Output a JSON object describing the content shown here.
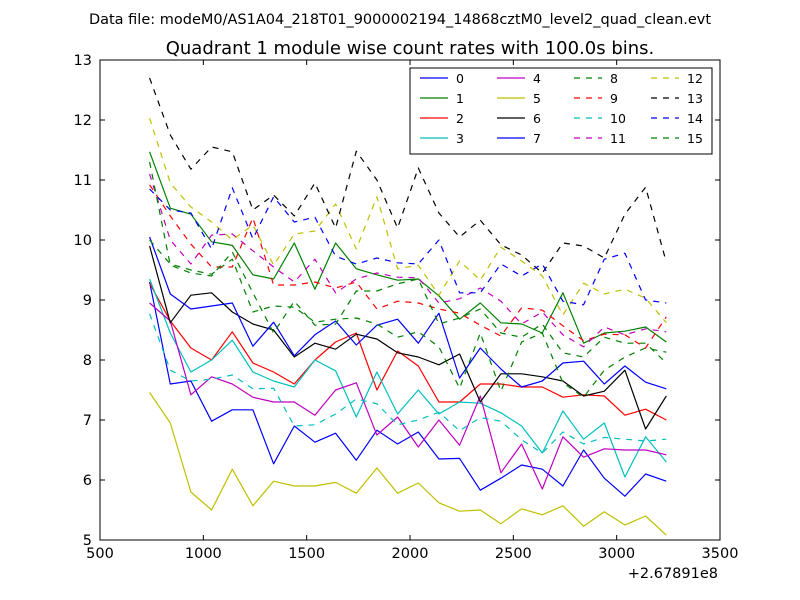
{
  "figure": {
    "suptitle": "Data file: modeM0/AS1A04_218T01_9000002194_14868cztM0_level2_quad_clean.evt"
  },
  "chart_data": {
    "type": "line",
    "title": "Quadrant 1 module wise count rates with 100.0s bins.",
    "xlabel": "",
    "ylabel": "",
    "x_offset_label": "+2.67891e8",
    "xlim": [
      500,
      3500
    ],
    "ylim": [
      5,
      13
    ],
    "xticks": [
      500,
      1000,
      1500,
      2000,
      2500,
      3000,
      3500
    ],
    "yticks": [
      5,
      6,
      7,
      8,
      9,
      10,
      11,
      12,
      13
    ],
    "grid": false,
    "legend_position": "top-right",
    "legend_columns": 4,
    "x": [
      740,
      840,
      940,
      1040,
      1140,
      1240,
      1340,
      1440,
      1540,
      1640,
      1740,
      1840,
      1940,
      2040,
      2140,
      2240,
      2340,
      2440,
      2540,
      2640,
      2740,
      2840,
      2940,
      3040,
      3140,
      3240
    ],
    "series": [
      {
        "name": "0",
        "color": "#0000ff",
        "dash": "solid",
        "values": [
          9.3,
          7.6,
          7.65,
          6.98,
          7.17,
          7.17,
          6.27,
          6.9,
          6.63,
          6.78,
          6.33,
          6.83,
          6.6,
          6.8,
          6.35,
          6.36,
          5.83,
          6.03,
          6.25,
          6.18,
          5.9,
          6.5,
          6.03,
          5.73,
          6.1,
          5.98
        ]
      },
      {
        "name": "1",
        "color": "#008000",
        "dash": "solid",
        "values": [
          11.47,
          10.53,
          10.43,
          9.97,
          9.91,
          9.42,
          9.35,
          9.95,
          9.18,
          9.95,
          9.52,
          9.42,
          9.33,
          9.35,
          9.07,
          8.68,
          8.95,
          8.62,
          8.6,
          8.45,
          9.12,
          8.28,
          8.45,
          8.48,
          8.55,
          8.3
        ]
      },
      {
        "name": "2",
        "color": "#ff0000",
        "dash": "solid",
        "values": [
          9.28,
          8.65,
          8.2,
          8.0,
          8.47,
          7.95,
          7.8,
          7.6,
          8.0,
          8.3,
          8.45,
          7.5,
          8.15,
          7.9,
          7.3,
          7.3,
          7.6,
          7.6,
          7.55,
          7.55,
          7.38,
          7.42,
          7.4,
          7.08,
          7.18,
          7.0
        ]
      },
      {
        "name": "3",
        "color": "#00bfbf",
        "dash": "solid",
        "values": [
          9.35,
          8.45,
          7.8,
          8.0,
          8.33,
          7.8,
          7.65,
          7.55,
          8.0,
          7.82,
          7.05,
          7.8,
          7.1,
          7.5,
          7.1,
          7.3,
          7.28,
          7.12,
          6.9,
          6.45,
          7.15,
          6.68,
          6.95,
          6.05,
          6.72,
          6.3
        ]
      },
      {
        "name": "4",
        "color": "#bf00bf",
        "dash": "solid",
        "values": [
          8.95,
          8.65,
          7.42,
          7.72,
          7.6,
          7.38,
          7.3,
          7.3,
          7.08,
          7.5,
          7.62,
          6.75,
          7.05,
          6.55,
          7.0,
          6.58,
          7.4,
          6.12,
          6.6,
          5.85,
          6.72,
          6.38,
          6.52,
          6.5,
          6.5,
          6.42
        ]
      },
      {
        "name": "5",
        "color": "#bfbf00",
        "dash": "solid",
        "values": [
          7.46,
          6.95,
          5.8,
          5.5,
          6.18,
          5.57,
          5.98,
          5.9,
          5.9,
          5.96,
          5.78,
          6.2,
          5.78,
          5.95,
          5.62,
          5.48,
          5.5,
          5.27,
          5.52,
          5.42,
          5.57,
          5.23,
          5.47,
          5.25,
          5.4,
          5.08
        ]
      },
      {
        "name": "6",
        "color": "#000000",
        "dash": "solid",
        "values": [
          9.9,
          8.62,
          9.08,
          9.12,
          8.8,
          8.6,
          8.5,
          8.05,
          8.28,
          8.18,
          8.43,
          8.35,
          8.12,
          8.05,
          7.92,
          8.1,
          7.3,
          7.77,
          7.77,
          7.72,
          7.65,
          7.4,
          7.48,
          7.83,
          6.85,
          7.4
        ]
      },
      {
        "name": "7",
        "color": "#0000ff",
        "dash": "solid",
        "values": [
          10.05,
          9.1,
          8.85,
          8.9,
          8.95,
          8.23,
          8.63,
          8.07,
          8.42,
          8.65,
          8.25,
          8.58,
          8.68,
          8.28,
          8.78,
          7.7,
          8.2,
          7.85,
          7.55,
          7.65,
          7.95,
          7.98,
          7.6,
          7.9,
          7.63,
          7.52
        ]
      },
      {
        "name": "8",
        "color": "#008000",
        "dash": "dashed",
        "values": [
          10.0,
          9.6,
          9.5,
          9.43,
          9.68,
          8.8,
          8.9,
          8.88,
          8.63,
          8.68,
          8.7,
          8.6,
          8.38,
          8.47,
          8.22,
          7.53,
          8.45,
          7.48,
          8.3,
          8.45,
          7.62,
          7.38,
          7.83,
          8.05,
          8.2,
          8.13
        ]
      },
      {
        "name": "9",
        "color": "#ff0000",
        "dash": "dashed",
        "values": [
          10.92,
          10.4,
          9.93,
          9.55,
          9.55,
          10.37,
          9.25,
          9.25,
          9.3,
          9.2,
          9.3,
          8.85,
          8.98,
          8.95,
          8.85,
          8.78,
          8.58,
          8.4,
          8.87,
          8.83,
          8.57,
          8.32,
          8.43,
          8.42,
          8.2,
          8.72
        ]
      },
      {
        "name": "10",
        "color": "#00bfbf",
        "dash": "dashed",
        "values": [
          8.77,
          7.83,
          7.65,
          7.68,
          7.75,
          7.52,
          7.53,
          6.9,
          6.92,
          7.1,
          7.35,
          7.27,
          6.92,
          7.0,
          7.13,
          6.82,
          7.04,
          6.98,
          6.67,
          6.45,
          6.8,
          6.6,
          6.71,
          6.68,
          6.65,
          6.68
        ]
      },
      {
        "name": "11",
        "color": "#bf00bf",
        "dash": "dashed",
        "values": [
          11.1,
          10.0,
          9.6,
          10.08,
          10.1,
          9.82,
          9.55,
          9.3,
          9.68,
          9.12,
          9.35,
          9.45,
          9.38,
          9.37,
          8.95,
          9.02,
          9.2,
          8.98,
          8.6,
          8.8,
          8.42,
          8.22,
          8.55,
          8.42,
          8.52,
          8.47
        ]
      },
      {
        "name": "12",
        "color": "#bfbf00",
        "dash": "dashed",
        "values": [
          12.03,
          10.95,
          10.55,
          10.3,
          10.0,
          10.25,
          9.58,
          10.1,
          10.15,
          10.6,
          9.85,
          10.72,
          9.52,
          9.58,
          9.08,
          9.65,
          9.33,
          9.88,
          9.65,
          9.4,
          8.75,
          9.28,
          9.1,
          9.18,
          9.03,
          8.62
        ]
      },
      {
        "name": "13",
        "color": "#000000",
        "dash": "dashed",
        "values": [
          12.7,
          11.75,
          11.18,
          11.55,
          11.47,
          10.5,
          10.75,
          10.4,
          10.95,
          10.2,
          11.48,
          11.0,
          10.2,
          11.2,
          10.45,
          10.05,
          10.33,
          9.92,
          9.75,
          9.45,
          9.95,
          9.9,
          9.7,
          10.43,
          10.88,
          9.63
        ]
      },
      {
        "name": "14",
        "color": "#0000ff",
        "dash": "dashed",
        "values": [
          10.85,
          10.5,
          10.45,
          9.85,
          10.87,
          10.02,
          10.72,
          10.3,
          10.38,
          9.73,
          9.6,
          9.7,
          9.62,
          9.6,
          10.0,
          9.12,
          9.12,
          9.6,
          9.4,
          9.6,
          8.98,
          8.92,
          9.68,
          9.78,
          9.0,
          8.95
        ]
      },
      {
        "name": "15",
        "color": "#008000",
        "dash": "dashed",
        "values": [
          11.3,
          9.58,
          9.45,
          9.4,
          9.8,
          9.12,
          8.45,
          8.98,
          8.58,
          8.6,
          9.15,
          9.15,
          9.27,
          9.35,
          8.6,
          8.7,
          8.85,
          8.45,
          8.38,
          8.6,
          8.12,
          8.05,
          8.38,
          8.28,
          8.28,
          7.95
        ]
      }
    ]
  }
}
